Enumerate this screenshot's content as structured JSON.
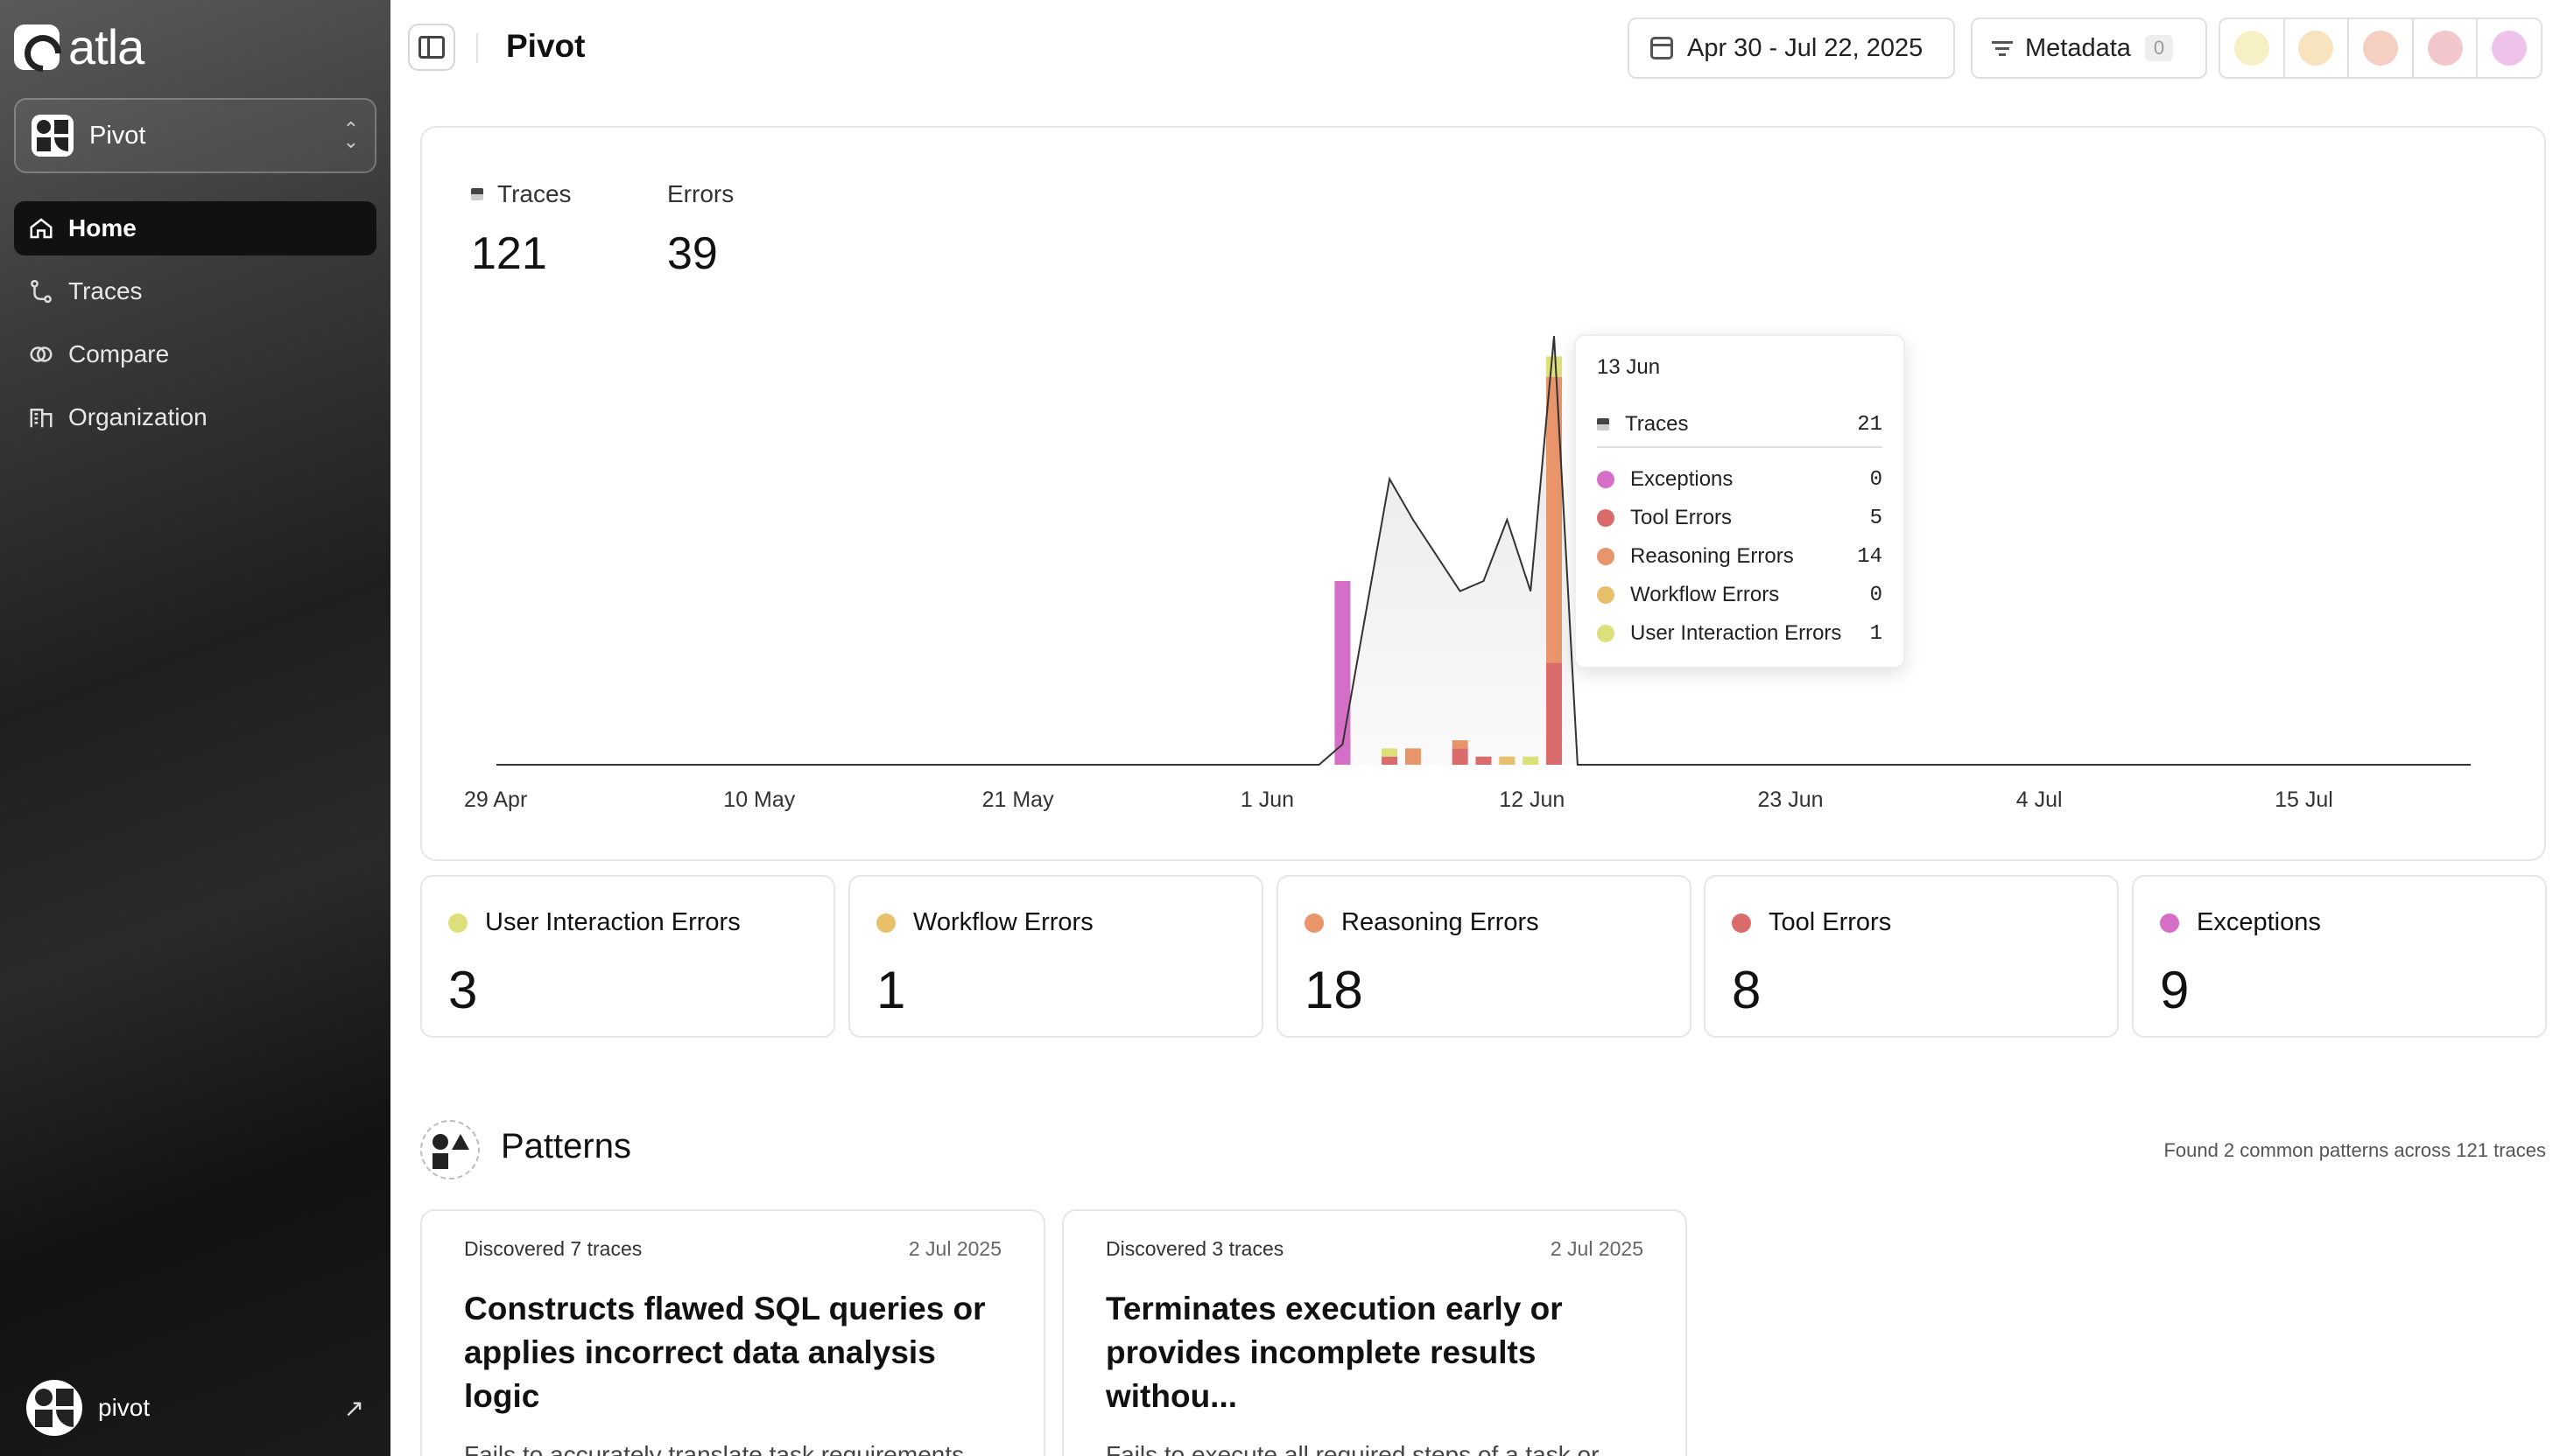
{
  "sidebar": {
    "brand": "atla",
    "workspace": "Pivot",
    "nav": [
      {
        "label": "Home",
        "icon": "home-icon",
        "active": true
      },
      {
        "label": "Traces",
        "icon": "traces-icon",
        "active": false
      },
      {
        "label": "Compare",
        "icon": "compare-icon",
        "active": false
      },
      {
        "label": "Organization",
        "icon": "organization-icon",
        "active": false
      }
    ],
    "user": "pivot"
  },
  "header": {
    "title": "Pivot",
    "date_range": "Apr 30 - Jul 22, 2025",
    "metadata_label": "Metadata",
    "metadata_count": "0",
    "swatches": [
      "#f6f0c4",
      "#f7e4bf",
      "#f5cfc2",
      "#f3c6cb",
      "#efc2ea"
    ]
  },
  "summary": {
    "traces_label": "Traces",
    "traces_value": "121",
    "errors_label": "Errors",
    "errors_value": "39"
  },
  "chart_data": {
    "type": "bar",
    "x_ticks": [
      "29 Apr",
      "10 May",
      "21 May",
      "1 Jun",
      "12 Jun",
      "23 Jun",
      "4 Jul",
      "15 Jul"
    ],
    "x_range": [
      "2025-04-29",
      "2025-07-22"
    ],
    "series_colors": {
      "Exceptions": "#d56ec7",
      "Tool Errors": "#d96b6b",
      "Reasoning Errors": "#e8956b",
      "Workflow Errors": "#e8c06b",
      "User Interaction Errors": "#dde07a"
    },
    "bars": [
      {
        "date": "2025-06-04",
        "Exceptions": 9,
        "Tool Errors": 0,
        "Reasoning Errors": 0,
        "Workflow Errors": 0,
        "User Interaction Errors": 0
      },
      {
        "date": "2025-06-06",
        "Exceptions": 0,
        "Tool Errors": 0.4,
        "Reasoning Errors": 0,
        "Workflow Errors": 0,
        "User Interaction Errors": 0.4
      },
      {
        "date": "2025-06-07",
        "Exceptions": 0,
        "Tool Errors": 0,
        "Reasoning Errors": 0.8,
        "Workflow Errors": 0,
        "User Interaction Errors": 0
      },
      {
        "date": "2025-06-09",
        "Exceptions": 0,
        "Tool Errors": 0.8,
        "Reasoning Errors": 0.4,
        "Workflow Errors": 0,
        "User Interaction Errors": 0
      },
      {
        "date": "2025-06-10",
        "Exceptions": 0,
        "Tool Errors": 0.4,
        "Reasoning Errors": 0,
        "Workflow Errors": 0,
        "User Interaction Errors": 0
      },
      {
        "date": "2025-06-11",
        "Exceptions": 0,
        "Tool Errors": 0,
        "Reasoning Errors": 0,
        "Workflow Errors": 0.4,
        "User Interaction Errors": 0
      },
      {
        "date": "2025-06-12",
        "Exceptions": 0,
        "Tool Errors": 0,
        "Reasoning Errors": 0,
        "Workflow Errors": 0,
        "User Interaction Errors": 0.4
      },
      {
        "date": "2025-06-13",
        "Exceptions": 0,
        "Tool Errors": 5,
        "Reasoning Errors": 14,
        "Workflow Errors": 0,
        "User Interaction Errors": 1
      }
    ],
    "traces_line": [
      {
        "date": "2025-04-29",
        "value": 0
      },
      {
        "date": "2025-06-03",
        "value": 0
      },
      {
        "date": "2025-06-04",
        "value": 1
      },
      {
        "date": "2025-06-06",
        "value": 14
      },
      {
        "date": "2025-06-07",
        "value": 12
      },
      {
        "date": "2025-06-09",
        "value": 8.5
      },
      {
        "date": "2025-06-10",
        "value": 9
      },
      {
        "date": "2025-06-11",
        "value": 12
      },
      {
        "date": "2025-06-12",
        "value": 8.5
      },
      {
        "date": "2025-06-13",
        "value": 21
      },
      {
        "date": "2025-06-14",
        "value": 0
      },
      {
        "date": "2025-07-22",
        "value": 0
      }
    ],
    "ylim": [
      0,
      21
    ]
  },
  "tooltip": {
    "date": "13 Jun",
    "traces_label": "Traces",
    "traces_value": "21",
    "rows": [
      {
        "label": "Exceptions",
        "value": "0",
        "color": "#d56ec7"
      },
      {
        "label": "Tool Errors",
        "value": "5",
        "color": "#d96b6b"
      },
      {
        "label": "Reasoning Errors",
        "value": "14",
        "color": "#e8956b"
      },
      {
        "label": "Workflow Errors",
        "value": "0",
        "color": "#e8c06b"
      },
      {
        "label": "User Interaction Errors",
        "value": "1",
        "color": "#dde07a"
      }
    ]
  },
  "error_cards": [
    {
      "label": "User Interaction Errors",
      "value": "3",
      "color": "#dde07a"
    },
    {
      "label": "Workflow Errors",
      "value": "1",
      "color": "#e8c06b"
    },
    {
      "label": "Reasoning Errors",
      "value": "18",
      "color": "#e8956b"
    },
    {
      "label": "Tool Errors",
      "value": "8",
      "color": "#d96b6b"
    },
    {
      "label": "Exceptions",
      "value": "9",
      "color": "#d56ec7"
    }
  ],
  "patterns": {
    "title": "Patterns",
    "summary": "Found 2 common patterns across 121 traces",
    "cards": [
      {
        "meta": "Discovered 7 traces",
        "date": "2 Jul 2025",
        "heading": "Constructs flawed SQL queries or applies incorrect data analysis logic",
        "description": "Fails to accurately translate task requirements into correct database queries or data"
      },
      {
        "meta": "Discovered 3 traces",
        "date": "2 Jul 2025",
        "heading": "Terminates execution early or provides incomplete results withou...",
        "description": "Fails to execute all required steps of a task or ceases operation before a task is truly finished,"
      }
    ]
  }
}
